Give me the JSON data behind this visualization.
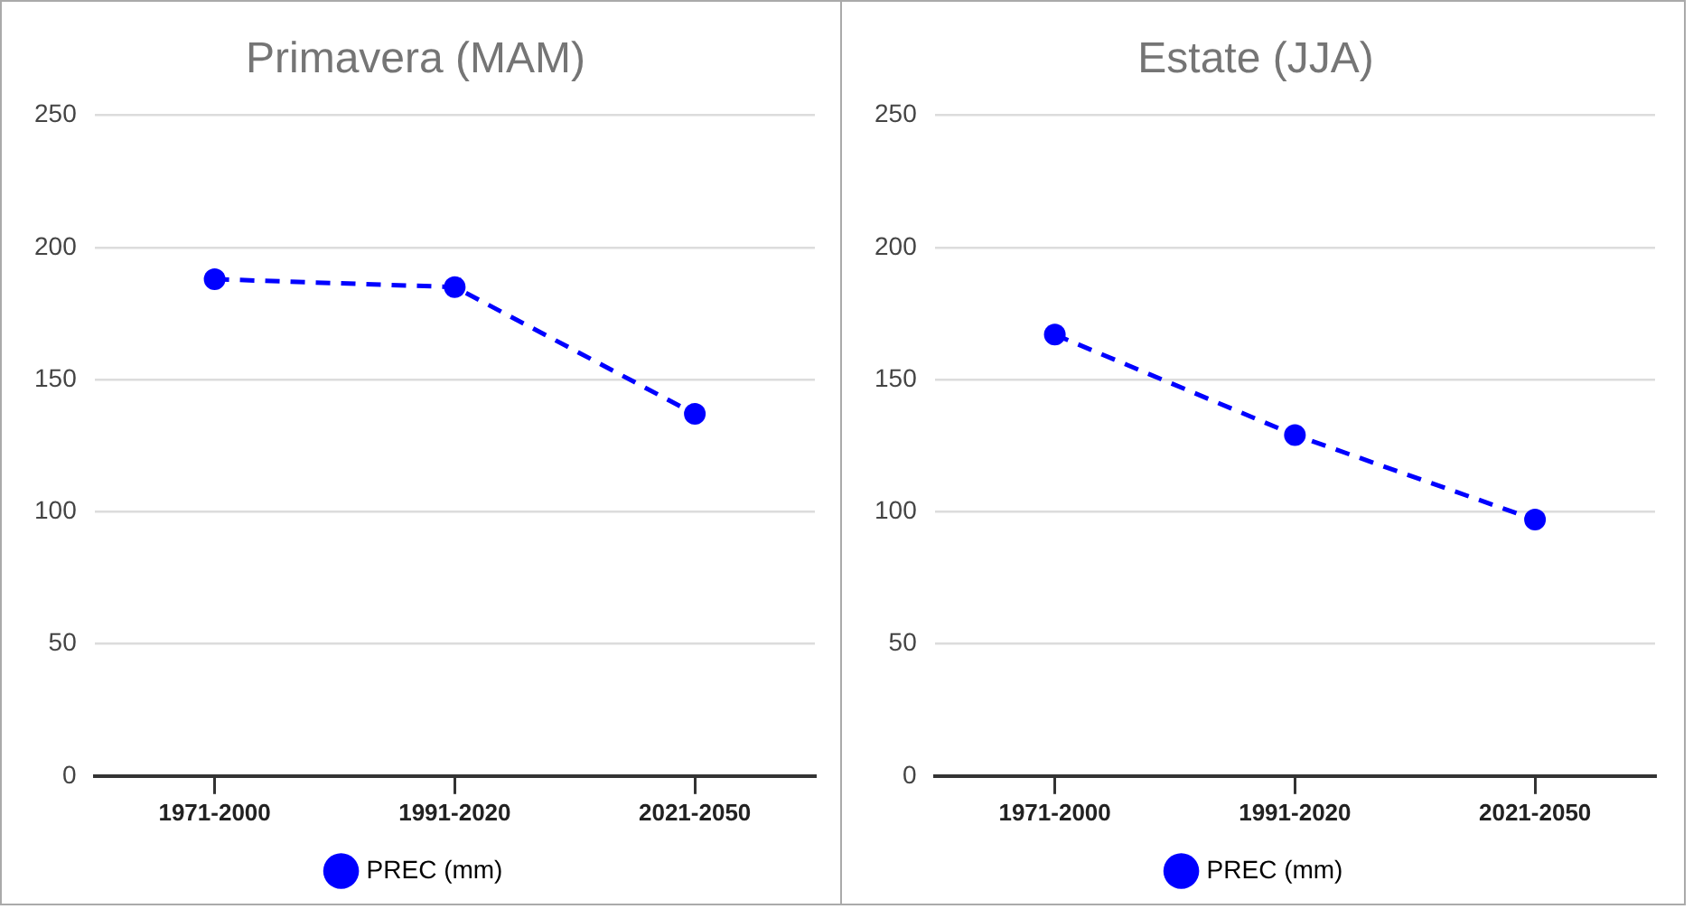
{
  "chart_data": [
    {
      "type": "line",
      "title": "Primavera (MAM)",
      "categories": [
        "1971-2000",
        "1991-2020",
        "2021-2050"
      ],
      "series": [
        {
          "name": "PREC (mm)",
          "color": "#0000ff",
          "values": [
            188,
            185,
            137
          ]
        }
      ],
      "ylim": [
        0,
        250
      ],
      "yticks": [
        0,
        50,
        100,
        150,
        200,
        250
      ],
      "grid": "y",
      "legend": "bottom",
      "marker": "circle",
      "line_style": "dashed"
    },
    {
      "type": "line",
      "title": "Estate (JJA)",
      "categories": [
        "1971-2000",
        "1991-2020",
        "2021-2050"
      ],
      "series": [
        {
          "name": "PREC (mm)",
          "color": "#0000ff",
          "values": [
            167,
            129,
            97
          ]
        }
      ],
      "ylim": [
        0,
        250
      ],
      "yticks": [
        0,
        50,
        100,
        150,
        200,
        250
      ],
      "grid": "y",
      "legend": "bottom",
      "marker": "circle",
      "line_style": "dashed"
    }
  ]
}
